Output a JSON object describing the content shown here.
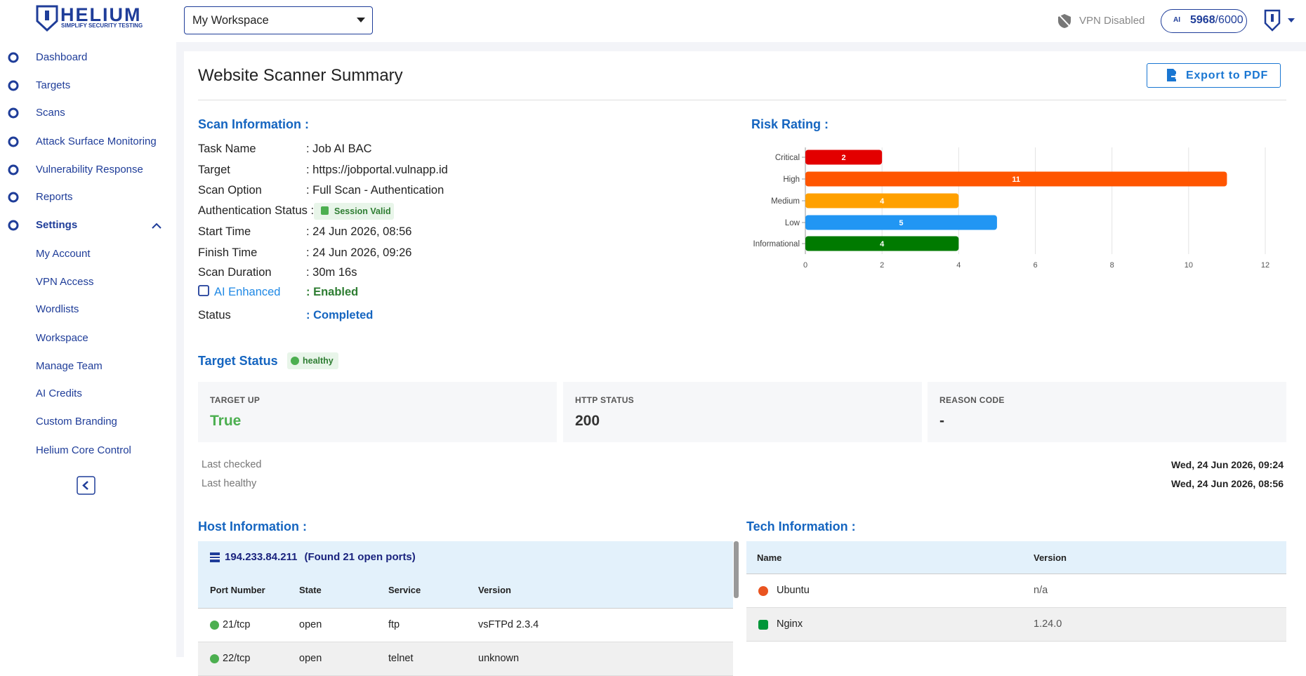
{
  "header": {
    "logo_title": "HELIUM",
    "logo_subtitle": "SIMPLIFY SECURITY TESTING",
    "workspace": "My Workspace",
    "vpn_status": "VPN Disabled",
    "credits_icon": "AI",
    "credits_used": "5968",
    "credits_total": "/6000"
  },
  "sidebar": {
    "items": [
      "Dashboard",
      "Targets",
      "Scans",
      "Attack Surface Monitoring",
      "Vulnerability Response",
      "Reports"
    ],
    "settings": "Settings",
    "settings_items": [
      "My Account",
      "VPN Access",
      "Wordlists",
      "Workspace",
      "Manage Team",
      "AI Credits",
      "Custom Branding",
      "Helium Core Control"
    ]
  },
  "page": {
    "title": "Website Scanner Summary",
    "export_button": "Export to PDF"
  },
  "scan_information": {
    "title": "Scan Information :",
    "task_name": {
      "label": "Task Name",
      "value": ": Job AI BAC"
    },
    "target": {
      "label": "Target",
      "value": ": https://jobportal.vulnapp.id"
    },
    "scan_option": {
      "label": "Scan Option",
      "value": ": Full Scan - Authentication"
    },
    "authentication": {
      "label": "Authentication Status :",
      "badge": "Session Valid"
    },
    "start_time": {
      "label": "Start Time",
      "value": ": 24 Jun 2026, 08:56"
    },
    "finish_time": {
      "label": "Finish Time",
      "value": ": 24 Jun 2026, 09:26"
    },
    "scan_duration": {
      "label": "Scan Duration",
      "value": ": 30m 16s"
    },
    "ai_enhanced": {
      "label": "AI Enhanced",
      "value": ": Enabled"
    },
    "status": {
      "label": "Status",
      "value": ": Completed"
    }
  },
  "risk_rating": {
    "type": "bar",
    "orientation": "horizontal",
    "title": "Risk Rating :",
    "categories": [
      "Critical",
      "High",
      "Medium",
      "Low",
      "Informational"
    ],
    "values": [
      2,
      11,
      4,
      5,
      4
    ],
    "colors": [
      "#e30000",
      "#ff5500",
      "#ffa000",
      "#2196f3",
      "#007a00"
    ],
    "xlim": [
      0,
      12
    ],
    "xticks": [
      0,
      2,
      4,
      6,
      8,
      10,
      12
    ],
    "grid": true
  },
  "target_status": {
    "title": "Target Status",
    "badge": "healthy",
    "cards": [
      {
        "label": "TARGET UP",
        "value": "True"
      },
      {
        "label": "HTTP STATUS",
        "value": "200"
      },
      {
        "label": "REASON CODE",
        "value": "-"
      }
    ],
    "last_checked": {
      "label": "Last checked",
      "value": "Wed, 24 Jun 2026, 09:24"
    },
    "last_healthy": {
      "label": "Last healthy",
      "value": "Wed, 24 Jun 2026, 08:56"
    }
  },
  "host_information": {
    "title": "Host Information :",
    "host": "194.233.84.211",
    "found": "(Found 21 open ports)",
    "columns": [
      "Port Number",
      "State",
      "Service",
      "Version"
    ],
    "rows": [
      [
        "21/tcp",
        "open",
        "ftp",
        "vsFTPd 2.3.4"
      ],
      [
        "22/tcp",
        "open",
        "telnet",
        "unknown"
      ]
    ]
  },
  "tech_information": {
    "title": "Tech Information :",
    "columns": [
      "Name",
      "Version"
    ],
    "rows": [
      [
        "Ubuntu",
        "n/a"
      ],
      [
        "Nginx",
        "1.24.0"
      ]
    ]
  }
}
